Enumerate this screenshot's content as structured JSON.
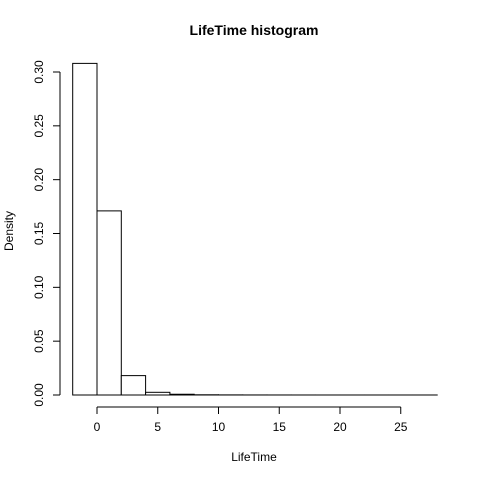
{
  "chart_data": {
    "type": "bar",
    "title": "LifeTime  histogram",
    "xlabel": "LifeTime",
    "ylabel": "Density",
    "bins": [
      {
        "start": -2,
        "end": 0,
        "density": 0.308
      },
      {
        "start": 0,
        "end": 2,
        "density": 0.171
      },
      {
        "start": 2,
        "end": 4,
        "density": 0.018
      },
      {
        "start": 4,
        "end": 6,
        "density": 0.0025
      },
      {
        "start": 6,
        "end": 8,
        "density": 0.0007
      },
      {
        "start": 8,
        "end": 10,
        "density": 0.0002
      },
      {
        "start": 10,
        "end": 12,
        "density": 0.0001
      },
      {
        "start": 12,
        "end": 14,
        "density": 5e-05
      },
      {
        "start": 14,
        "end": 16,
        "density": 3e-05
      },
      {
        "start": 16,
        "end": 18,
        "density": 2e-05
      },
      {
        "start": 18,
        "end": 20,
        "density": 1e-05
      },
      {
        "start": 20,
        "end": 22,
        "density": 1e-05
      },
      {
        "start": 22,
        "end": 24,
        "density": 1e-05
      },
      {
        "start": 24,
        "end": 26,
        "density": 1e-05
      },
      {
        "start": 26,
        "end": 28,
        "density": 1e-05
      }
    ],
    "xlim": [
      -2,
      28
    ],
    "ylim": [
      0,
      0.31
    ],
    "xticks": [
      0,
      5,
      10,
      15,
      20,
      25
    ],
    "xtick_labels": [
      "0",
      "5",
      "10",
      "15",
      "20",
      "25"
    ],
    "yticks": [
      0,
      0.05,
      0.1,
      0.15,
      0.2,
      0.25,
      0.3
    ],
    "ytick_labels": [
      "0.00",
      "0.05",
      "0.10",
      "0.15",
      "0.20",
      "0.25",
      "0.30"
    ],
    "grid": false,
    "bar_fill": "#ffffff",
    "bar_stroke": "#000000"
  }
}
